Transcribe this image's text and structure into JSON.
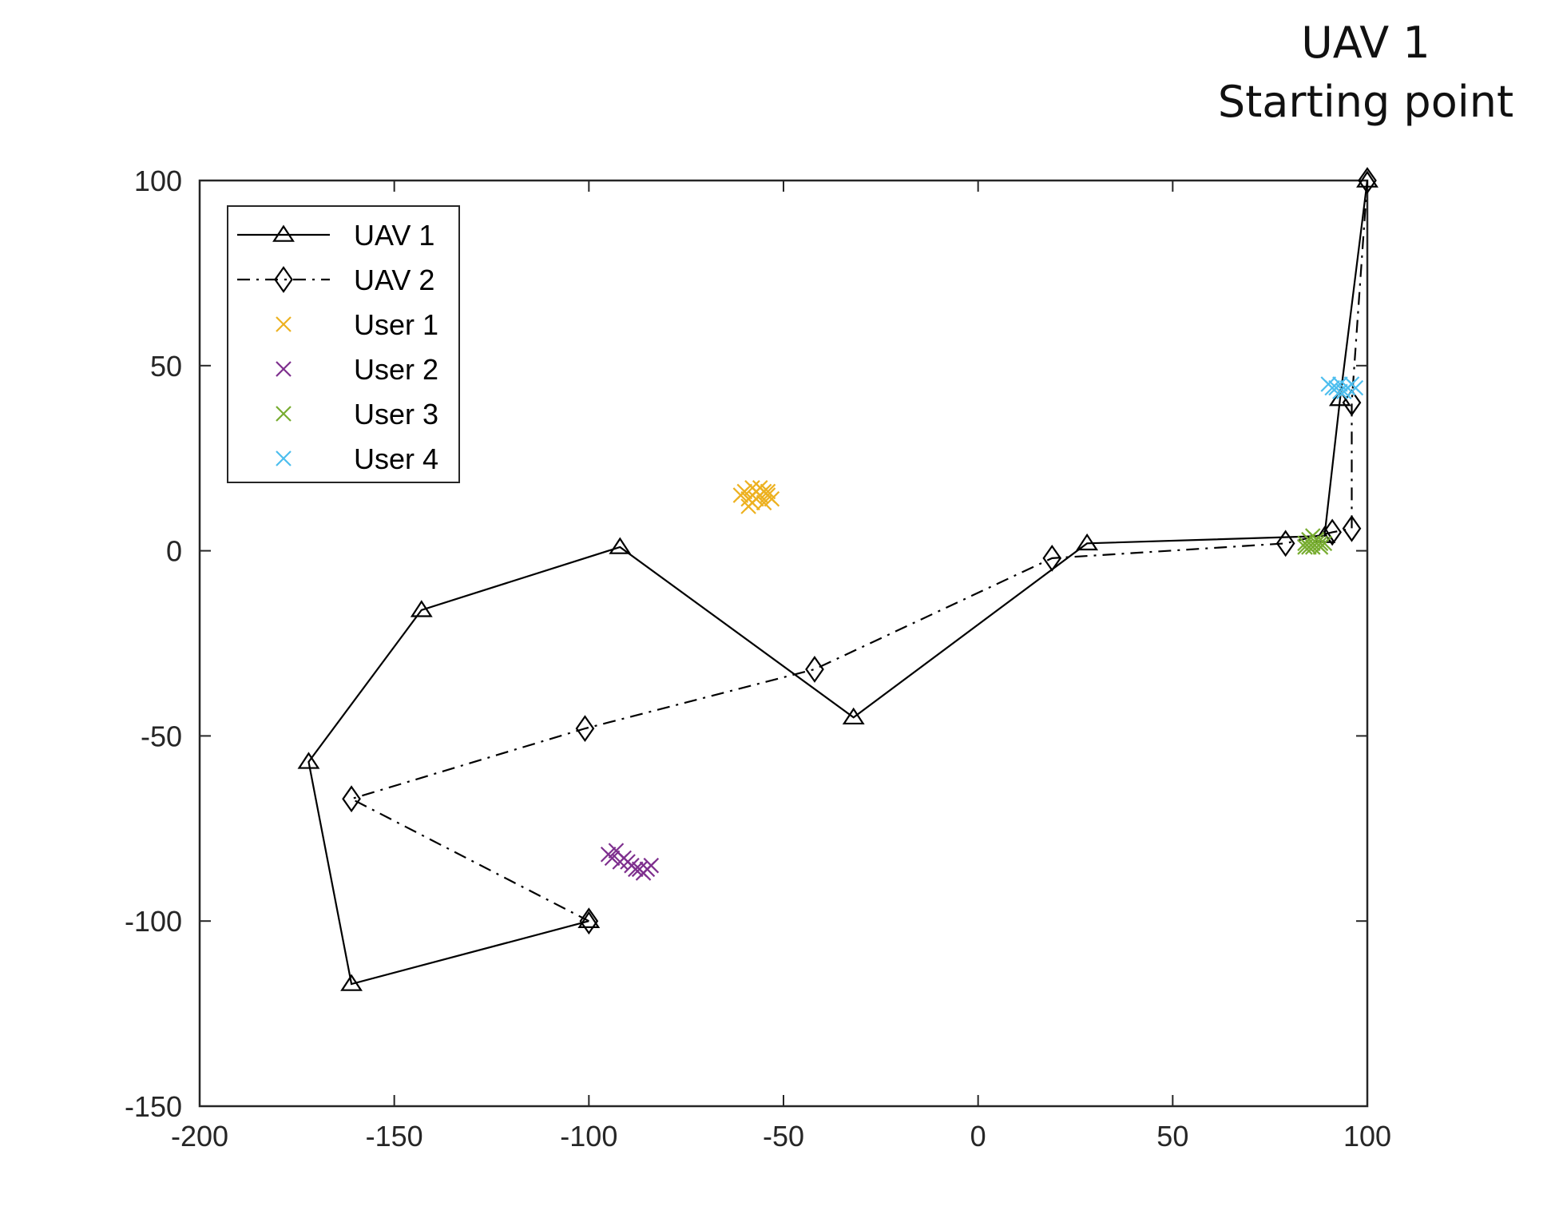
{
  "annotation": {
    "line1": "UAV 1",
    "line2": "Starting point"
  },
  "chart_data": {
    "type": "line",
    "xlim": [
      -200,
      100
    ],
    "ylim": [
      -150,
      100
    ],
    "xticks": [
      -200,
      -150,
      -100,
      -50,
      0,
      50,
      100
    ],
    "xtick_labels": [
      "-200",
      "-150",
      "-100",
      "-50",
      "0",
      "50",
      "100"
    ],
    "yticks": [
      -150,
      -100,
      -50,
      0,
      50,
      100
    ],
    "ytick_labels": [
      "-150",
      "-100",
      "-50",
      "0",
      "50",
      "100"
    ],
    "grid": false,
    "legend_position": "top-left",
    "series": [
      {
        "name": "UAV 1",
        "kind": "line",
        "line_style": "solid",
        "marker": "triangle",
        "color": "#000000",
        "x": [
          100,
          93,
          89,
          28,
          -32,
          -92,
          -143,
          -172,
          -161,
          -100
        ],
        "y": [
          100,
          41,
          4,
          2,
          -45,
          1,
          -16,
          -57,
          -117,
          -100
        ]
      },
      {
        "name": "UAV 2",
        "kind": "line",
        "line_style": "dash-dot",
        "marker": "diamond",
        "color": "#000000",
        "x": [
          100,
          96,
          96,
          91,
          79,
          19,
          -42,
          -101,
          -161,
          -100
        ],
        "y": [
          100,
          40,
          6,
          5,
          2,
          -2,
          -32,
          -48,
          -67,
          -100
        ]
      },
      {
        "name": "User 1",
        "kind": "scatter",
        "marker": "x",
        "color": "#EDB120",
        "x": [
          -60,
          -58,
          -56,
          -55,
          -57,
          -59,
          -54,
          -53,
          -58,
          -56,
          -61,
          -57,
          -55,
          -59,
          -54
        ],
        "y": [
          16,
          17,
          15,
          16,
          14,
          12,
          15,
          14,
          13,
          17,
          15,
          16,
          13,
          14,
          16
        ]
      },
      {
        "name": "User 2",
        "kind": "scatter",
        "marker": "x",
        "color": "#7E2F8E",
        "x": [
          -95,
          -93,
          -91,
          -92,
          -89,
          -87,
          -90,
          -88,
          -85,
          -84,
          -94,
          -86
        ],
        "y": [
          -82,
          -81,
          -83,
          -84,
          -85,
          -86,
          -84,
          -86,
          -86,
          -85,
          -83,
          -87
        ]
      },
      {
        "name": "User 3",
        "kind": "scatter",
        "marker": "x",
        "color": "#77AC30",
        "x": [
          84,
          85,
          86,
          87,
          88,
          86,
          85,
          87,
          84,
          88,
          86,
          89
        ],
        "y": [
          2,
          1,
          2,
          3,
          2,
          1,
          3,
          2,
          1,
          1,
          4,
          2
        ]
      },
      {
        "name": "User 4",
        "kind": "scatter",
        "marker": "x",
        "color": "#4DBEEE",
        "x": [
          90,
          92,
          93,
          94,
          95,
          96,
          97,
          91,
          93,
          95
        ],
        "y": [
          45,
          44,
          45,
          43,
          44,
          45,
          44,
          44,
          43,
          44
        ]
      }
    ]
  }
}
